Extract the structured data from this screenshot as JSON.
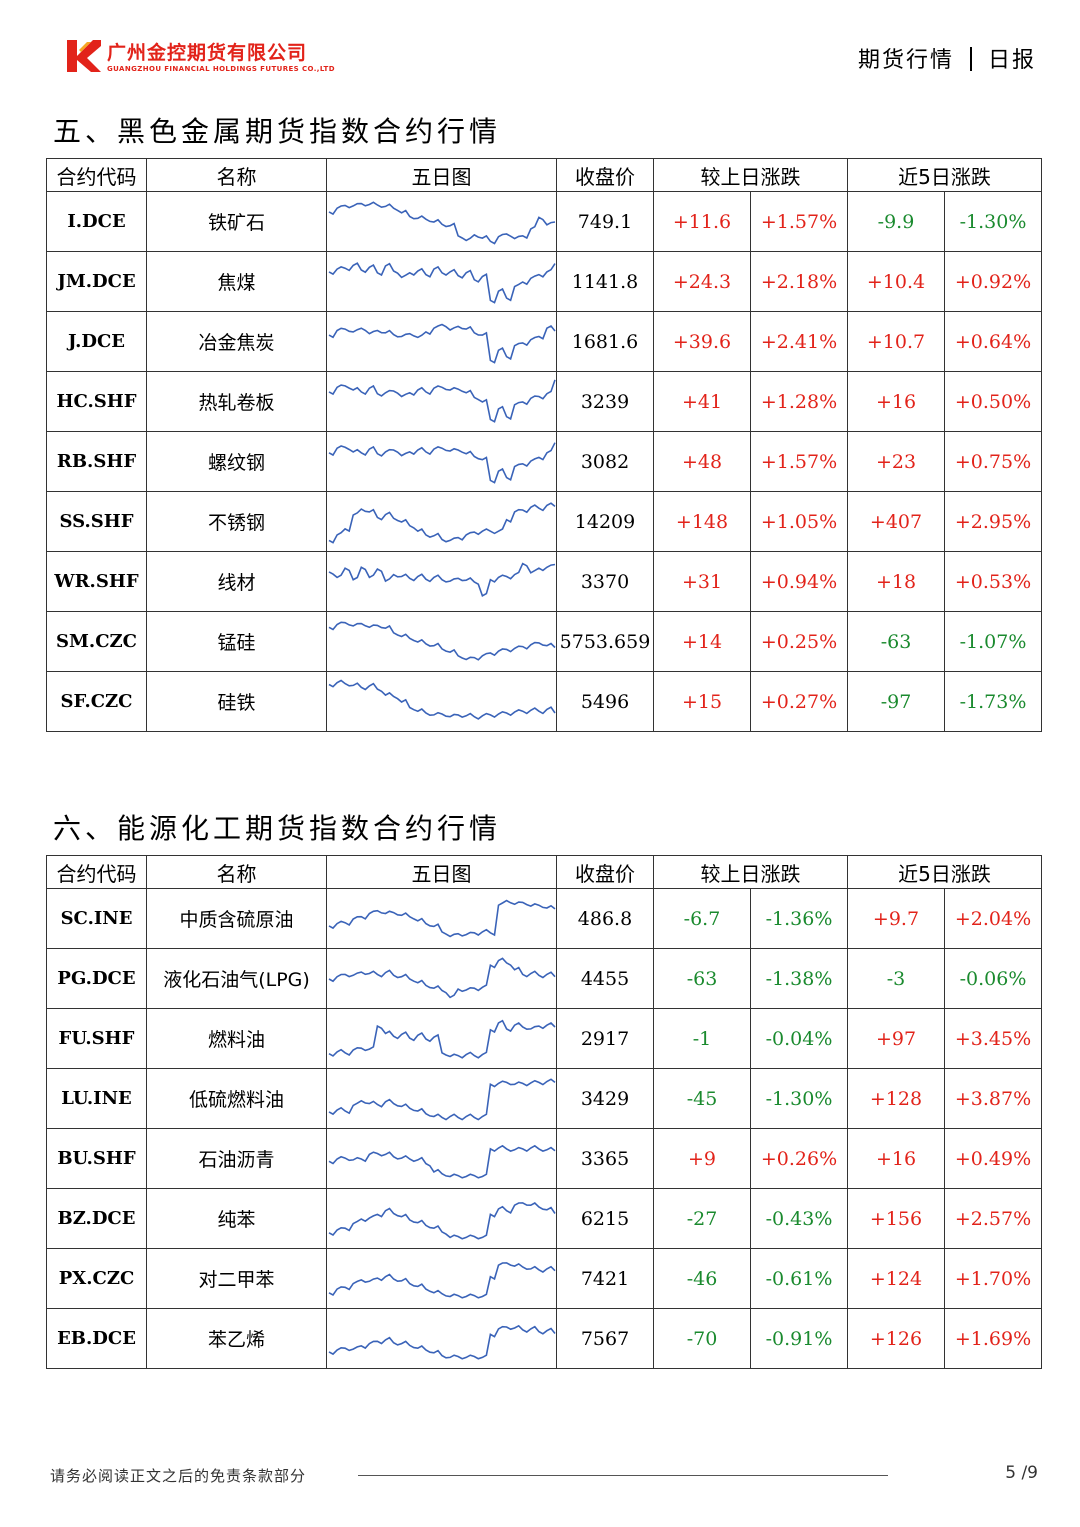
{
  "header": {
    "logo_cn": "广州金控期货有限公司",
    "logo_en": "GUANGZHOU FINANCIAL HOLDINGS FUTURES CO.,LTD",
    "doc_type": "期货行情",
    "doc_period": "日报"
  },
  "colors": {
    "brand": "#e2231a",
    "up": "#e2231a",
    "down": "#1a8a2e",
    "sparkline": "#3a63b8"
  },
  "table_headers": {
    "code": "合约代码",
    "name": "名称",
    "chart": "五日图",
    "close": "收盘价",
    "daily": "较上日涨跌",
    "five_day": "近5日涨跌"
  },
  "section5": {
    "title": "五、黑色金属期货指数合约行情",
    "rows": [
      {
        "code": "I.DCE",
        "name": "铁矿石",
        "close": "749.1",
        "d_chg": "+11.6",
        "d_pct": "+1.57%",
        "w_chg": "-9.9",
        "w_pct": "-1.30%",
        "spark": [
          0.72,
          0.8,
          0.86,
          0.85,
          0.9,
          0.88,
          0.87,
          0.84,
          0.8,
          0.7,
          0.62,
          0.58,
          0.56,
          0.5,
          0.45,
          0.42,
          0.2,
          0.1,
          0.22,
          0.15,
          0.08,
          0.18,
          0.24,
          0.14,
          0.2,
          0.35,
          0.6,
          0.44,
          0.5
        ]
      },
      {
        "code": "JM.DCE",
        "name": "焦煤",
        "close": "1141.8",
        "d_chg": "+24.3",
        "d_pct": "+2.18%",
        "w_chg": "+10.4",
        "w_pct": "+0.92%",
        "spark": [
          0.72,
          0.78,
          0.8,
          0.86,
          0.76,
          0.82,
          0.7,
          0.85,
          0.74,
          0.6,
          0.7,
          0.74,
          0.66,
          0.78,
          0.7,
          0.72,
          0.64,
          0.7,
          0.55,
          0.62,
          0.1,
          0.3,
          0.15,
          0.4,
          0.5,
          0.58,
          0.66,
          0.72,
          0.9
        ]
      },
      {
        "code": "J.DCE",
        "name": "冶金焦炭",
        "close": "1681.6",
        "d_chg": "+39.6",
        "d_pct": "+2.41%",
        "w_chg": "+10.7",
        "w_pct": "+0.64%",
        "spark": [
          0.65,
          0.75,
          0.78,
          0.72,
          0.8,
          0.68,
          0.75,
          0.7,
          0.66,
          0.62,
          0.68,
          0.6,
          0.72,
          0.8,
          0.88,
          0.76,
          0.84,
          0.78,
          0.7,
          0.65,
          0.1,
          0.32,
          0.18,
          0.42,
          0.48,
          0.55,
          0.62,
          0.8,
          0.74
        ]
      },
      {
        "code": "HC.SHF",
        "name": "热轧卷板",
        "close": "3239",
        "d_chg": "+41",
        "d_pct": "+1.28%",
        "w_chg": "+16",
        "w_pct": "+0.50%",
        "spark": [
          0.72,
          0.82,
          0.85,
          0.76,
          0.72,
          0.8,
          0.68,
          0.7,
          0.74,
          0.62,
          0.7,
          0.76,
          0.72,
          0.8,
          0.82,
          0.76,
          0.78,
          0.7,
          0.6,
          0.5,
          0.12,
          0.35,
          0.18,
          0.44,
          0.5,
          0.58,
          0.62,
          0.68,
          0.98
        ]
      },
      {
        "code": "RB.SHF",
        "name": "螺纹钢",
        "close": "3082",
        "d_chg": "+48",
        "d_pct": "+1.57%",
        "w_chg": "+23",
        "w_pct": "+0.75%",
        "spark": [
          0.7,
          0.8,
          0.82,
          0.72,
          0.7,
          0.78,
          0.68,
          0.72,
          0.76,
          0.64,
          0.72,
          0.76,
          0.72,
          0.78,
          0.8,
          0.74,
          0.76,
          0.68,
          0.62,
          0.55,
          0.1,
          0.3,
          0.16,
          0.4,
          0.46,
          0.52,
          0.6,
          0.7,
          0.92
        ]
      },
      {
        "code": "SS.SHF",
        "name": "不锈钢",
        "close": "14209",
        "d_chg": "+148",
        "d_pct": "+1.05%",
        "w_chg": "+407",
        "w_pct": "+2.95%",
        "spark": [
          0.1,
          0.22,
          0.35,
          0.65,
          0.78,
          0.72,
          0.6,
          0.66,
          0.58,
          0.5,
          0.42,
          0.3,
          0.22,
          0.2,
          0.12,
          0.1,
          0.16,
          0.22,
          0.28,
          0.3,
          0.3,
          0.3,
          0.55,
          0.72,
          0.76,
          0.82,
          0.8,
          0.86,
          0.84
        ]
      },
      {
        "code": "WR.SHF",
        "name": "线材",
        "close": "3370",
        "d_chg": "+31",
        "d_pct": "+0.94%",
        "w_chg": "+18",
        "w_pct": "+0.53%",
        "spark": [
          0.72,
          0.6,
          0.8,
          0.55,
          0.82,
          0.6,
          0.78,
          0.52,
          0.66,
          0.62,
          0.58,
          0.62,
          0.56,
          0.6,
          0.55,
          0.52,
          0.58,
          0.54,
          0.5,
          0.2,
          0.55,
          0.6,
          0.62,
          0.66,
          0.9,
          0.7,
          0.8,
          0.82,
          0.88
        ]
      },
      {
        "code": "SM.CZC",
        "name": "锰硅",
        "close": "5753.659",
        "d_chg": "+14",
        "d_pct": "+0.25%",
        "w_chg": "-63",
        "w_pct": "-1.07%",
        "spark": [
          0.82,
          0.88,
          0.92,
          0.85,
          0.9,
          0.82,
          0.86,
          0.8,
          0.7,
          0.62,
          0.58,
          0.5,
          0.46,
          0.42,
          0.35,
          0.28,
          0.2,
          0.12,
          0.16,
          0.2,
          0.26,
          0.3,
          0.34,
          0.36,
          0.4,
          0.44,
          0.48,
          0.42,
          0.38
        ]
      },
      {
        "code": "SF.CZC",
        "name": "硅铁",
        "close": "5496",
        "d_chg": "+15",
        "d_pct": "+0.27%",
        "w_chg": "-97",
        "w_pct": "-1.73%",
        "spark": [
          0.88,
          0.92,
          0.9,
          0.86,
          0.82,
          0.85,
          0.78,
          0.65,
          0.62,
          0.5,
          0.38,
          0.3,
          0.26,
          0.22,
          0.24,
          0.18,
          0.22,
          0.2,
          0.18,
          0.2,
          0.22,
          0.24,
          0.26,
          0.28,
          0.3,
          0.32,
          0.3,
          0.34,
          0.26
        ]
      }
    ]
  },
  "section6": {
    "title": "六、能源化工期货指数合约行情",
    "rows": [
      {
        "code": "SC.INE",
        "name": "中质含硫原油",
        "close": "486.8",
        "d_chg": "-6.7",
        "d_pct": "-1.36%",
        "w_chg": "+9.7",
        "w_pct": "+2.04%",
        "spark": [
          0.35,
          0.4,
          0.42,
          0.5,
          0.55,
          0.62,
          0.68,
          0.62,
          0.64,
          0.58,
          0.55,
          0.46,
          0.4,
          0.34,
          0.22,
          0.12,
          0.18,
          0.16,
          0.2,
          0.22,
          0.2,
          0.8,
          0.9,
          0.82,
          0.86,
          0.78,
          0.8,
          0.74,
          0.72
        ]
      },
      {
        "code": "PG.DCE",
        "name": "液化石油气(LPG)",
        "close": "4455",
        "d_chg": "-63",
        "d_pct": "-1.38%",
        "w_chg": "-3",
        "w_pct": "-0.06%",
        "spark": [
          0.5,
          0.55,
          0.6,
          0.58,
          0.65,
          0.62,
          0.6,
          0.64,
          0.58,
          0.55,
          0.5,
          0.42,
          0.36,
          0.3,
          0.25,
          0.1,
          0.28,
          0.26,
          0.3,
          0.32,
          0.8,
          0.9,
          0.85,
          0.7,
          0.6,
          0.62,
          0.58,
          0.6,
          0.55
        ]
      },
      {
        "code": "FU.SHF",
        "name": "燃料油",
        "close": "2917",
        "d_chg": "-1",
        "d_pct": "-0.04%",
        "w_chg": "+97",
        "w_pct": "+3.45%",
        "spark": [
          0.18,
          0.22,
          0.2,
          0.26,
          0.3,
          0.28,
          0.78,
          0.62,
          0.56,
          0.6,
          0.52,
          0.58,
          0.5,
          0.54,
          0.2,
          0.12,
          0.14,
          0.16,
          0.14,
          0.16,
          0.7,
          0.85,
          0.72,
          0.8,
          0.76,
          0.72,
          0.78,
          0.8,
          0.76
        ]
      },
      {
        "code": "LU.INE",
        "name": "低硫燃料油",
        "close": "3429",
        "d_chg": "-45",
        "d_pct": "-1.30%",
        "w_chg": "+128",
        "w_pct": "+3.87%",
        "spark": [
          0.22,
          0.26,
          0.24,
          0.36,
          0.46,
          0.4,
          0.38,
          0.44,
          0.4,
          0.34,
          0.3,
          0.24,
          0.18,
          0.12,
          0.1,
          0.12,
          0.1,
          0.12,
          0.1,
          0.12,
          0.82,
          0.84,
          0.86,
          0.82,
          0.84,
          0.85,
          0.86,
          0.88,
          0.86
        ]
      },
      {
        "code": "BU.SHF",
        "name": "石油沥青",
        "close": "3365",
        "d_chg": "+9",
        "d_pct": "+0.26%",
        "w_chg": "+16",
        "w_pct": "+0.49%",
        "spark": [
          0.45,
          0.5,
          0.52,
          0.48,
          0.5,
          0.6,
          0.62,
          0.6,
          0.55,
          0.52,
          0.5,
          0.48,
          0.4,
          0.22,
          0.18,
          0.12,
          0.14,
          0.12,
          0.14,
          0.12,
          0.72,
          0.74,
          0.72,
          0.7,
          0.72,
          0.74,
          0.72,
          0.7,
          0.68
        ]
      },
      {
        "code": "BZ.DCE",
        "name": "纯苯",
        "close": "6215",
        "d_chg": "-27",
        "d_pct": "-0.43%",
        "w_chg": "+156",
        "w_pct": "+2.57%",
        "spark": [
          0.2,
          0.26,
          0.3,
          0.4,
          0.5,
          0.52,
          0.6,
          0.68,
          0.62,
          0.55,
          0.48,
          0.42,
          0.36,
          0.3,
          0.22,
          0.1,
          0.12,
          0.1,
          0.12,
          0.1,
          0.6,
          0.72,
          0.68,
          0.8,
          0.85,
          0.8,
          0.76,
          0.7,
          0.62
        ]
      },
      {
        "code": "PX.CZC",
        "name": "对二甲苯",
        "close": "7421",
        "d_chg": "-46",
        "d_pct": "-0.61%",
        "w_chg": "+124",
        "w_pct": "+1.70%",
        "spark": [
          0.2,
          0.28,
          0.32,
          0.4,
          0.48,
          0.45,
          0.52,
          0.55,
          0.5,
          0.46,
          0.4,
          0.34,
          0.28,
          0.2,
          0.18,
          0.12,
          0.14,
          0.12,
          0.14,
          0.12,
          0.55,
          0.8,
          0.85,
          0.78,
          0.76,
          0.72,
          0.7,
          0.72,
          0.68
        ]
      },
      {
        "code": "EB.DCE",
        "name": "苯乙烯",
        "close": "7567",
        "d_chg": "-70",
        "d_pct": "-0.91%",
        "w_chg": "+126",
        "w_pct": "+1.69%",
        "spark": [
          0.22,
          0.26,
          0.3,
          0.28,
          0.35,
          0.4,
          0.45,
          0.48,
          0.42,
          0.4,
          0.36,
          0.3,
          0.26,
          0.2,
          0.14,
          0.1,
          0.12,
          0.1,
          0.12,
          0.1,
          0.6,
          0.72,
          0.76,
          0.74,
          0.7,
          0.72,
          0.66,
          0.68,
          0.62
        ]
      }
    ]
  },
  "footer": {
    "disclaimer": "请务必阅读正文之后的免责条款部分",
    "page": "5 /9"
  }
}
